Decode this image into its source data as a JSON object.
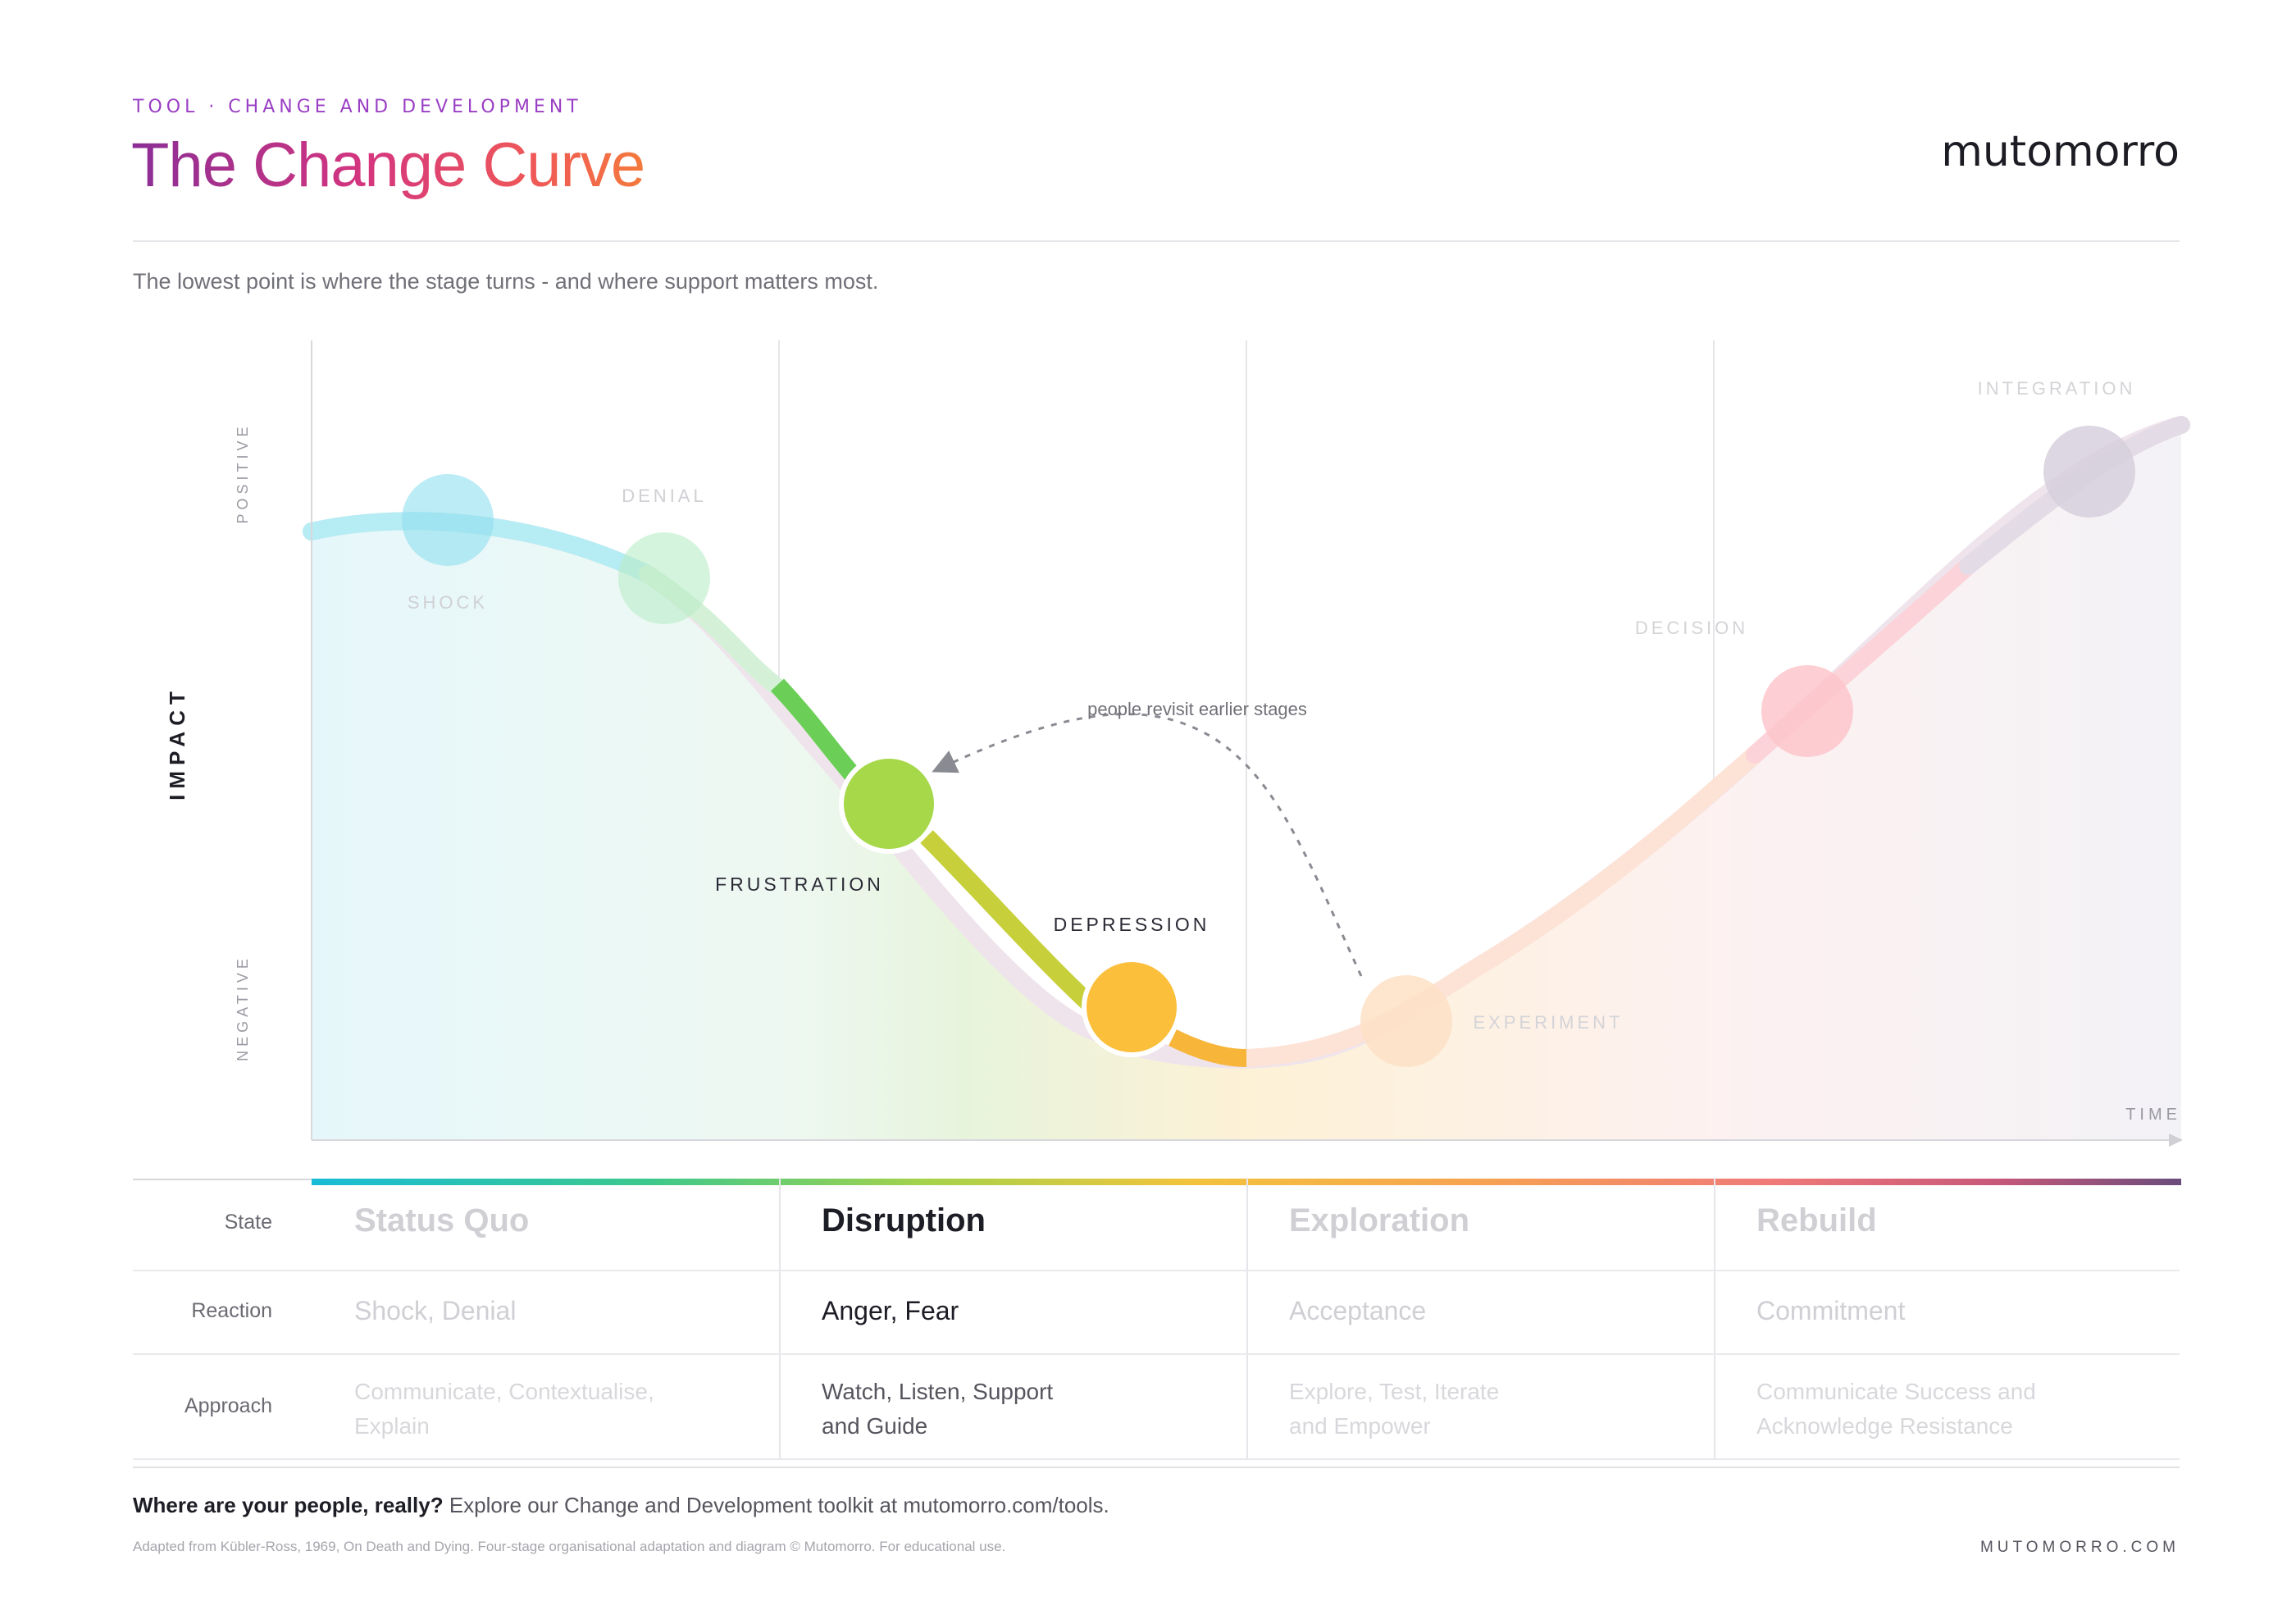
{
  "header": {
    "eyebrow": "TOOL · CHANGE AND DEVELOPMENT",
    "title": "The Change Curve",
    "brand": "mutomorro",
    "subtitle": "The lowest point is where the stage turns - and where support matters most."
  },
  "diagram": {
    "y_axis_title": "IMPACT",
    "y_axis_top": "POSITIVE",
    "y_axis_bottom": "NEGATIVE",
    "x_axis_label": "TIME",
    "annotation": "people revisit earlier stages",
    "stages": [
      {
        "label": "SHOCK",
        "color": "#8fe0ee",
        "active": false
      },
      {
        "label": "DENIAL",
        "color": "#b9ecc8",
        "active": false
      },
      {
        "label": "FRUSTRATION",
        "color": "#a6d24a",
        "active": true
      },
      {
        "label": "DEPRESSION",
        "color": "#fbbf3c",
        "active": true
      },
      {
        "label": "EXPERIMENT",
        "color": "#fde1c6",
        "active": false
      },
      {
        "label": "DECISION",
        "color": "#fdc8cc",
        "active": false
      },
      {
        "label": "INTEGRATION",
        "color": "#d6d0dd",
        "active": false
      }
    ],
    "progress_gradient": [
      "#19bcd6",
      "#3cc88c",
      "#a6d24a",
      "#f2c33c",
      "#f7a350",
      "#ef7a78",
      "#c8587a",
      "#6a4c7c"
    ]
  },
  "table": {
    "labels": {
      "state": "State",
      "reaction": "Reaction",
      "approach": "Approach"
    },
    "columns": [
      {
        "state": "Status Quo",
        "reaction": "Shock, Denial",
        "approach": "Communicate, Contextualise, Explain",
        "active": false
      },
      {
        "state": "Disruption",
        "reaction": "Anger, Fear",
        "approach": "Watch, Listen, Support and Guide",
        "active": true
      },
      {
        "state": "Exploration",
        "reaction": "Acceptance",
        "approach": "Explore, Test, Iterate and Empower",
        "active": false
      },
      {
        "state": "Rebuild",
        "reaction": "Commitment",
        "approach": "Communicate Success and Acknowledge Resistance",
        "active": false
      }
    ]
  },
  "footer": {
    "cta_bold": "Where are your people, really?",
    "cta_text": "Explore our Change and Development toolkit at mutomorro.com/tools.",
    "note": "Adapted from Kübler-Ross, 1969, On Death and Dying. Four-stage organisational adaptation and diagram © Mutomorro. For educational use.",
    "url": "MUTOMORRO.COM"
  }
}
